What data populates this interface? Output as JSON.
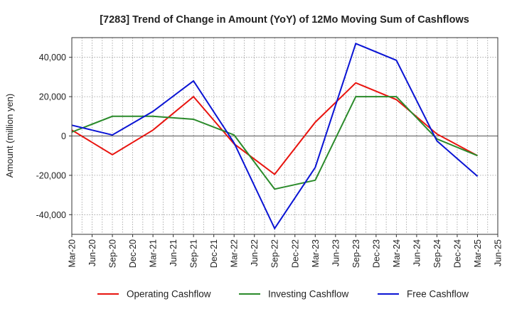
{
  "chart_data": {
    "type": "line",
    "title": "[7283]  Trend of Change in Amount (YoY) of 12Mo Moving Sum of Cashflows",
    "xlabel": "",
    "ylabel": "Amount (million yen)",
    "ylim": [
      -50000,
      50000
    ],
    "yticks": [
      -40000,
      -20000,
      0,
      20000,
      40000
    ],
    "ytick_labels": [
      "-40,000",
      "-20,000",
      "0",
      "20,000",
      "40,000"
    ],
    "categories": [
      "Mar-20",
      "Jun-20",
      "Sep-20",
      "Dec-20",
      "Mar-21",
      "Jun-21",
      "Sep-21",
      "Dec-21",
      "Mar-22",
      "Jun-22",
      "Sep-22",
      "Dec-22",
      "Mar-23",
      "Jun-23",
      "Sep-23",
      "Dec-23",
      "Mar-24",
      "Jun-24",
      "Sep-24",
      "Dec-24",
      "Mar-25",
      "Jun-25"
    ],
    "grid": true,
    "legend_position": "bottom",
    "series": [
      {
        "name": "Operating Cashflow",
        "color": "#e8140f",
        "values": [
          3000,
          null,
          -9500,
          null,
          3000,
          null,
          20000,
          null,
          -4000,
          null,
          -19500,
          null,
          7000,
          null,
          27000,
          null,
          18500,
          null,
          1000,
          null,
          -10000,
          null
        ]
      },
      {
        "name": "Investing Cashflow",
        "color": "#2a8a2a",
        "values": [
          2000,
          null,
          10000,
          null,
          10000,
          null,
          8500,
          null,
          500,
          null,
          -27000,
          null,
          -22500,
          null,
          20000,
          null,
          20000,
          null,
          -1500,
          null,
          -10000,
          null
        ]
      },
      {
        "name": "Free Cashflow",
        "color": "#0a14d4",
        "values": [
          5500,
          null,
          500,
          null,
          12500,
          null,
          28000,
          null,
          -3500,
          null,
          -47000,
          null,
          -16000,
          null,
          47000,
          null,
          38500,
          null,
          -2500,
          null,
          -20500,
          null
        ]
      }
    ]
  }
}
